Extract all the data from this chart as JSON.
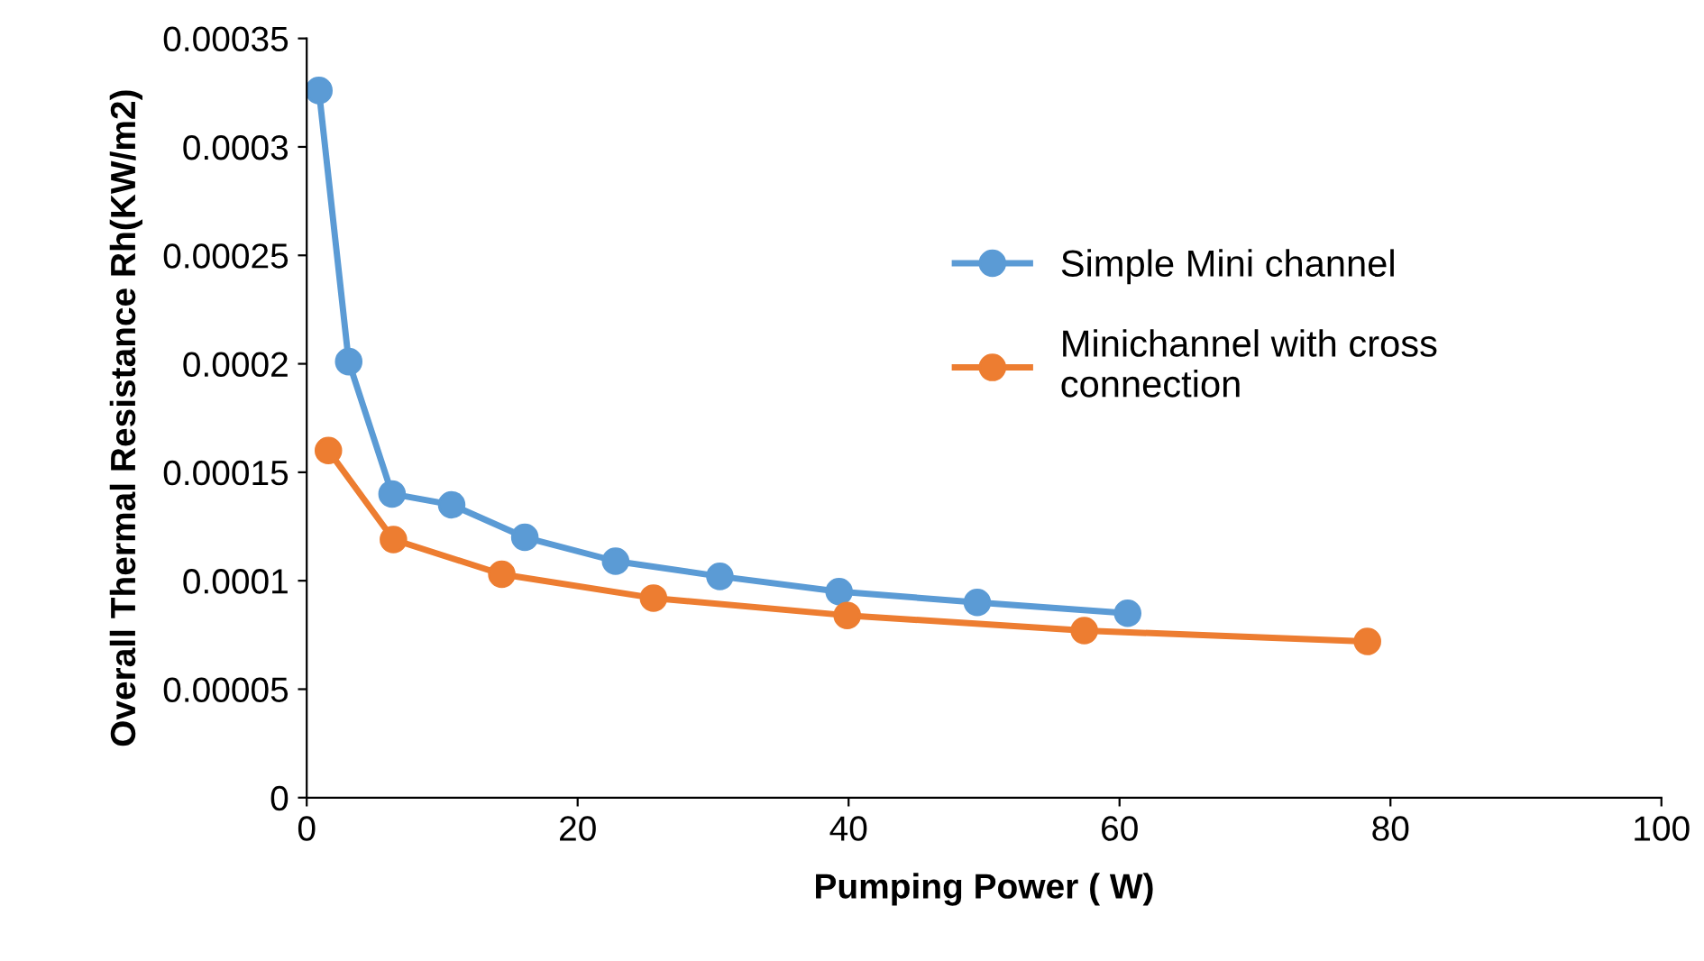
{
  "chart_data": {
    "type": "line",
    "xlabel": "Pumping Power ( W)",
    "ylabel": "Overall Thermal Resistance Rh(KW/m2)",
    "xlim": [
      0,
      100
    ],
    "xticks": [
      0,
      20,
      40,
      60,
      80,
      100
    ],
    "ylim": [
      0,
      0.00035
    ],
    "yticks": [
      {
        "value": 0,
        "label": "0"
      },
      {
        "value": 5e-05,
        "label": "0.00005"
      },
      {
        "value": 0.0001,
        "label": "0.0001"
      },
      {
        "value": 0.00015,
        "label": "0.00015"
      },
      {
        "value": 0.0002,
        "label": "0.0002"
      },
      {
        "value": 0.00025,
        "label": "0.00025"
      },
      {
        "value": 0.0003,
        "label": "0.0003"
      },
      {
        "value": 0.00035,
        "label": "0.00035"
      }
    ],
    "grid": false,
    "legend": "right",
    "marker": "circle",
    "line_style": "solid",
    "series": [
      {
        "name": "Simple Mini channel",
        "color": "#5b9bd5",
        "x": [
          0.9,
          3.1,
          6.3,
          10.7,
          16.1,
          22.8,
          30.5,
          39.3,
          49.5,
          60.6
        ],
        "values": [
          0.000326,
          0.000201,
          0.00014,
          0.000135,
          0.00012,
          0.000109,
          0.000102,
          9.5e-05,
          9e-05,
          8.5e-05
        ]
      },
      {
        "name": "Minichannel with cross\nconnection",
        "color": "#ed7d31",
        "x": [
          1.6,
          6.4,
          14.4,
          25.6,
          39.9,
          57.4,
          78.3
        ],
        "values": [
          0.00016,
          0.000119,
          0.000103,
          9.2e-05,
          8.4e-05,
          7.7e-05,
          7.2e-05
        ]
      }
    ]
  }
}
